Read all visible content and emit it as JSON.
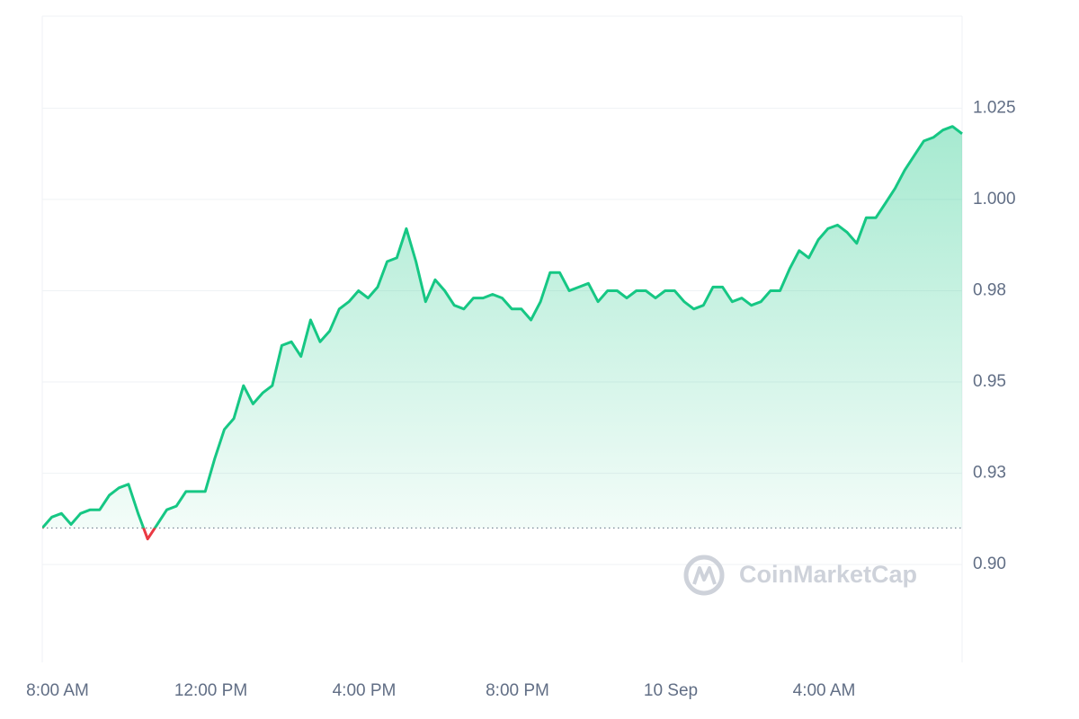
{
  "chart_data": {
    "type": "line",
    "categories": [
      "8:00 AM",
      null,
      null,
      null,
      null,
      null,
      null,
      null,
      null,
      null,
      null,
      null,
      null,
      null,
      null,
      null,
      "12:00 PM",
      null,
      null,
      null,
      null,
      null,
      null,
      null,
      null,
      null,
      null,
      null,
      null,
      null,
      null,
      null,
      "4:00 PM",
      null,
      null,
      null,
      null,
      null,
      null,
      null,
      null,
      null,
      null,
      null,
      null,
      null,
      null,
      null,
      "8:00 PM",
      null,
      null,
      null,
      null,
      null,
      null,
      null,
      null,
      null,
      null,
      null,
      null,
      null,
      null,
      null,
      "10 Sep",
      null,
      null,
      null,
      null,
      null,
      null,
      null,
      null,
      null,
      null,
      null,
      null,
      null,
      null,
      null,
      "4:00 AM",
      null,
      null,
      null,
      null,
      null,
      null,
      null,
      null,
      null,
      null,
      null,
      null,
      null,
      null,
      null,
      null
    ],
    "series": [
      {
        "color": "#16c784",
        "below_color": "#ea3943",
        "values": [
          0.91,
          0.913,
          0.914,
          0.911,
          0.914,
          0.915,
          0.915,
          0.919,
          0.921,
          0.922,
          0.914,
          0.907,
          0.911,
          0.915,
          0.916,
          0.92,
          0.92,
          0.92,
          0.929,
          0.937,
          0.94,
          0.949,
          0.944,
          0.947,
          0.949,
          0.96,
          0.961,
          0.957,
          0.967,
          0.961,
          0.964,
          0.97,
          0.972,
          0.975,
          0.973,
          0.976,
          0.983,
          0.984,
          0.992,
          0.983,
          0.972,
          0.978,
          0.975,
          0.971,
          0.97,
          0.973,
          0.973,
          0.974,
          0.973,
          0.97,
          0.97,
          0.967,
          0.972,
          0.98,
          0.98,
          0.975,
          0.976,
          0.977,
          0.972,
          0.975,
          0.975,
          0.973,
          0.975,
          0.975,
          0.973,
          0.975,
          0.975,
          0.972,
          0.97,
          0.971,
          0.976,
          0.976,
          0.972,
          0.973,
          0.971,
          0.972,
          0.975,
          0.975,
          0.981,
          0.986,
          0.984,
          0.989,
          0.992,
          0.993,
          0.991,
          0.988,
          0.995,
          0.995,
          0.999,
          1.003,
          1.008,
          1.012,
          1.016,
          1.017,
          1.019,
          1.02,
          1.018
        ]
      }
    ],
    "baseline": 0.91,
    "ylim": [
      0.8732,
      1.0502
    ],
    "yticks": [
      {
        "value": 0.9,
        "label": "0.90"
      },
      {
        "value": 0.925,
        "label": "0.93"
      },
      0.95,
      {
        "value": 0.975,
        "label": "0.98"
      },
      {
        "value": 1.0,
        "label": "1.000"
      },
      1.025
    ],
    "grid": true,
    "watermark": "CoinMarketCap"
  }
}
